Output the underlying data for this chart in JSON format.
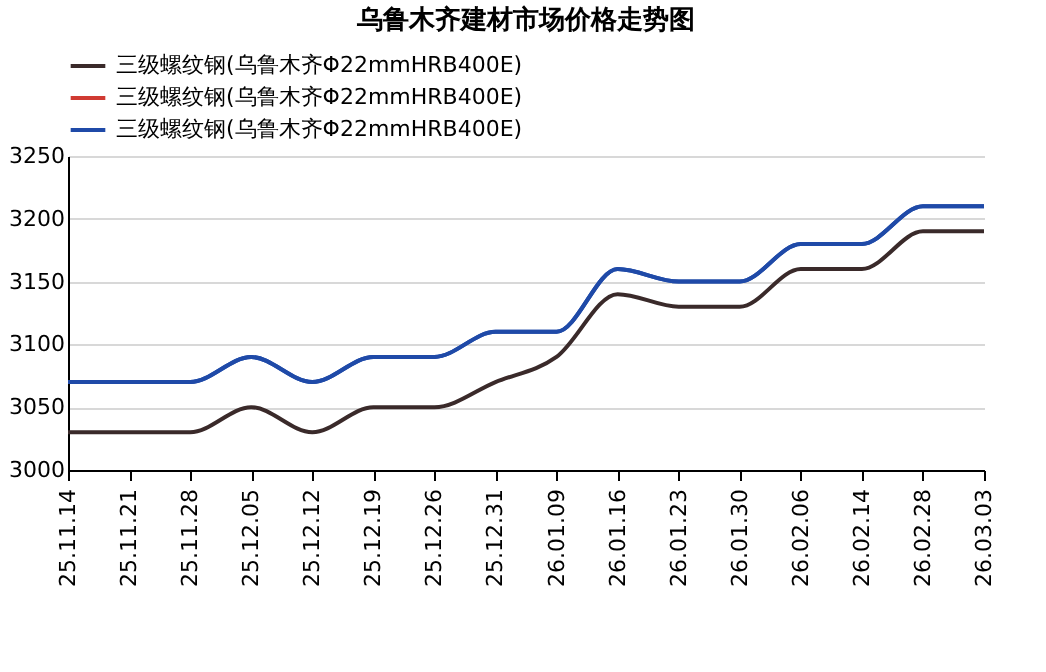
{
  "chart_data": {
    "type": "line",
    "title": "乌鲁木齐建材市场价格走势图",
    "categories": [
      "25.11.14",
      "25.11.21",
      "25.11.28",
      "25.12.05",
      "25.12.12",
      "25.12.19",
      "25.12.26",
      "25.12.31",
      "26.01.09",
      "26.01.16",
      "26.01.23",
      "26.01.30",
      "26.02.06",
      "26.02.14",
      "26.02.28",
      "26.03.03"
    ],
    "series": [
      {
        "name": "三级螺纹钢(乌鲁木齐Φ22mmHRB400E)",
        "color": "#3a2a2a",
        "values": [
          3030,
          3030,
          3030,
          3050,
          3030,
          3050,
          3050,
          3070,
          3090,
          3140,
          3130,
          3130,
          3160,
          3160,
          3190,
          3190
        ]
      },
      {
        "name": "三级螺纹钢(乌鲁木齐Φ22mmHRB400E)",
        "color": "#d03a32",
        "values": [
          null,
          null,
          null,
          null,
          null,
          null,
          null,
          null,
          null,
          null,
          null,
          null,
          null,
          null,
          null,
          null
        ]
      },
      {
        "name": "三级螺纹钢(乌鲁木齐Φ22mmHRB400E)",
        "color": "#1f4aa8",
        "values": [
          3070,
          3070,
          3070,
          3090,
          3070,
          3090,
          3090,
          3110,
          3110,
          3160,
          3150,
          3150,
          3180,
          3180,
          3210,
          3210
        ]
      }
    ],
    "ylim": [
      3000,
      3250
    ],
    "yticks": [
      3000,
      3050,
      3100,
      3150,
      3200,
      3250
    ],
    "grid": "y",
    "legend": "top"
  }
}
